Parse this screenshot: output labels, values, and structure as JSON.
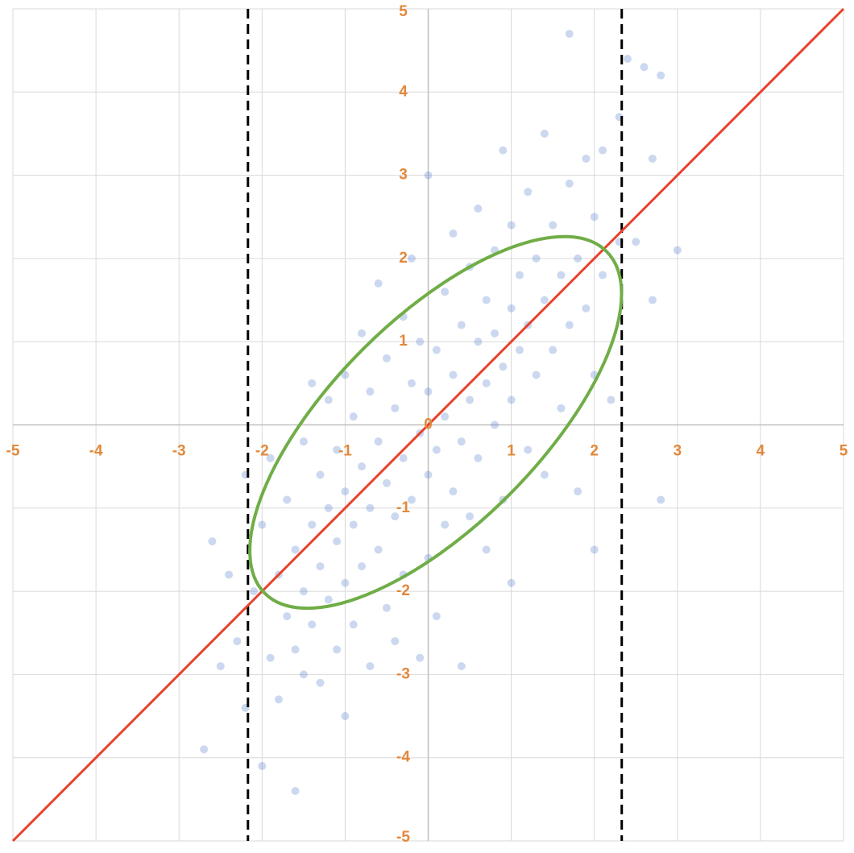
{
  "chart_data": {
    "type": "scatter",
    "xlim": [
      -5,
      5
    ],
    "ylim": [
      -5,
      5
    ],
    "xticks": [
      -5,
      -4,
      -3,
      -2,
      -1,
      1,
      2,
      3,
      4,
      5
    ],
    "yticks": [
      -5,
      -4,
      -3,
      -2,
      -1,
      0,
      1,
      2,
      3,
      4,
      5
    ],
    "grid": true,
    "tick_color": "#e2883a",
    "series": [
      {
        "color": "#4472c4",
        "x": [
          -2.7,
          -2.6,
          -2.5,
          -2.4,
          -2.3,
          -2.2,
          -2.2,
          -2.1,
          -2.0,
          -2.0,
          -1.9,
          -1.9,
          -1.8,
          -1.8,
          -1.7,
          -1.7,
          -1.6,
          -1.6,
          -1.6,
          -1.5,
          -1.5,
          -1.5,
          -1.4,
          -1.4,
          -1.4,
          -1.3,
          -1.3,
          -1.3,
          -1.2,
          -1.2,
          -1.2,
          -1.1,
          -1.1,
          -1.1,
          -1.0,
          -1.0,
          -1.0,
          -1.0,
          -0.9,
          -0.9,
          -0.9,
          -0.8,
          -0.8,
          -0.8,
          -0.7,
          -0.7,
          -0.7,
          -0.6,
          -0.6,
          -0.6,
          -0.5,
          -0.5,
          -0.5,
          -0.4,
          -0.4,
          -0.4,
          -0.3,
          -0.3,
          -0.3,
          -0.2,
          -0.2,
          -0.2,
          -0.1,
          -0.1,
          -0.1,
          0.0,
          0.0,
          0.0,
          0.0,
          0.1,
          0.1,
          0.1,
          0.2,
          0.2,
          0.2,
          0.3,
          0.3,
          0.3,
          0.4,
          0.4,
          0.4,
          0.5,
          0.5,
          0.5,
          0.6,
          0.6,
          0.6,
          0.7,
          0.7,
          0.7,
          0.8,
          0.8,
          0.8,
          0.9,
          0.9,
          0.9,
          1.0,
          1.0,
          1.0,
          1.0,
          1.1,
          1.1,
          1.2,
          1.2,
          1.2,
          1.3,
          1.3,
          1.4,
          1.4,
          1.4,
          1.5,
          1.5,
          1.6,
          1.6,
          1.7,
          1.7,
          1.7,
          1.8,
          1.8,
          1.9,
          1.9,
          2.0,
          2.0,
          2.0,
          2.1,
          2.1,
          2.2,
          2.3,
          2.3,
          2.4,
          2.5,
          2.6,
          2.7,
          2.7,
          2.8,
          2.8,
          3.0
        ],
        "values": [
          -3.9,
          -1.4,
          -2.9,
          -1.8,
          -2.6,
          -3.4,
          -0.6,
          -2.0,
          -4.1,
          -1.2,
          -2.8,
          -0.4,
          -1.8,
          -3.3,
          -2.3,
          -0.9,
          -4.4,
          -1.5,
          -2.7,
          -0.2,
          -2.0,
          -3.0,
          -1.2,
          -2.4,
          0.5,
          -1.7,
          -3.1,
          -0.6,
          -2.1,
          -1.0,
          0.3,
          -2.7,
          -1.4,
          -0.3,
          -1.9,
          -0.8,
          0.6,
          -3.5,
          -1.2,
          -2.4,
          0.1,
          -0.5,
          -1.7,
          1.1,
          -2.9,
          -1.0,
          0.4,
          -0.2,
          -1.5,
          1.7,
          -2.2,
          -0.7,
          0.8,
          -1.1,
          0.2,
          -2.6,
          -0.4,
          1.3,
          -1.8,
          0.5,
          -0.9,
          2.0,
          -0.1,
          -2.8,
          1.0,
          -0.6,
          0.4,
          -1.6,
          3.0,
          0.9,
          -0.3,
          -2.3,
          1.6,
          0.1,
          -1.2,
          0.6,
          -0.8,
          2.3,
          1.2,
          -0.2,
          -2.9,
          0.3,
          1.9,
          -1.1,
          1.0,
          -0.4,
          2.6,
          0.5,
          1.5,
          -1.5,
          1.1,
          2.1,
          0.0,
          0.7,
          3.3,
          -0.9,
          1.4,
          0.3,
          2.4,
          -1.9,
          0.9,
          1.8,
          -0.3,
          2.8,
          1.2,
          0.6,
          2.0,
          1.5,
          3.5,
          -0.6,
          0.9,
          2.4,
          1.8,
          0.2,
          4.7,
          1.2,
          2.9,
          -0.8,
          2.0,
          1.4,
          3.2,
          0.6,
          2.5,
          -1.5,
          1.8,
          3.3,
          0.3,
          2.2,
          3.7,
          4.4,
          2.2,
          4.3,
          1.5,
          3.2,
          -0.9,
          4.2,
          2.1
        ]
      }
    ],
    "line": {
      "x": [
        -5,
        5
      ],
      "values": [
        -5,
        5
      ],
      "color": "#e8412c"
    },
    "ellipse": {
      "center": [
        0.09,
        0.03
      ],
      "semi_axes": [
        2.91,
        1.24
      ],
      "angle": 45,
      "color": "#70ad47"
    },
    "vlines": [
      {
        "x": -2.17
      },
      {
        "x": 2.33
      }
    ]
  }
}
